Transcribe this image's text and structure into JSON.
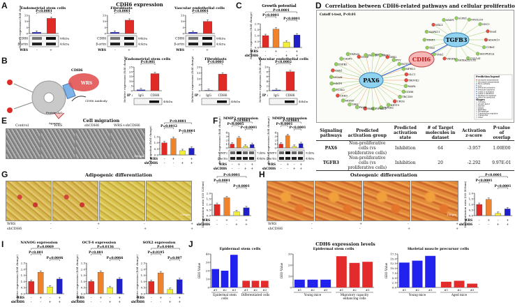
{
  "panels": {
    "A": "A",
    "B": "B",
    "C": "C",
    "D": "D",
    "E": "E",
    "F": "F",
    "G": "G",
    "H": "H",
    "I": "I",
    "J": "J"
  },
  "A": {
    "title": "CDH6 expression",
    "charts": [
      {
        "title": "Endometrial stem cells",
        "p": "P<0.0001",
        "values": [
          1,
          12.5
        ],
        "ymax": 15,
        "ticks": [
          "15",
          "10",
          "5",
          "0"
        ]
      },
      {
        "title": "Fibroblasts",
        "p": "P<0.0001",
        "values": [
          1,
          11
        ],
        "ymax": 15,
        "ticks": [
          "15",
          "10",
          "5",
          "0"
        ]
      },
      {
        "title": "Vascular endothelial cells",
        "p": "P<0.0001",
        "values": [
          1,
          10
        ],
        "ymax": 15,
        "ticks": [
          "15",
          "10",
          "5",
          "0"
        ]
      }
    ],
    "ylabel": "Relative expression (fold change)",
    "blot": {
      "cdh6": "CDH6",
      "actin": "β-actin",
      "kda1": "88kDa",
      "kda2": "43kDa"
    },
    "wrs": "WRS",
    "minus": "-",
    "plus": "+"
  },
  "B": {
    "diagram": {
      "cdh6": "CDH6",
      "wrs": "WRS",
      "antibody": "CDH6 Antibody",
      "beads": "Protein A/G",
      "agarose": "Agarose"
    },
    "charts": [
      {
        "title": "Endometrial stem cells",
        "p": "P<0.001",
        "values": [
          1,
          18
        ],
        "ymax": 25,
        "ticks": [
          "25",
          "20",
          "15",
          "10",
          "5",
          "0"
        ]
      },
      {
        "title": "Fibroblasts",
        "p": "P<0.0001",
        "values": [
          0.3,
          14
        ],
        "ymax": 20,
        "ticks": [
          "20",
          "15",
          "10",
          "5",
          "0"
        ]
      },
      {
        "title": "Vascular endothelial cells",
        "p": "P<0.0002",
        "values": [
          0.3,
          8
        ],
        "ymax": 10,
        "ticks": [
          "10",
          "8",
          "6",
          "4",
          "2",
          "0"
        ]
      }
    ],
    "ip": "IP :",
    "igg": "IgG",
    "cdh6": "CDH6",
    "kda": "40kDa",
    "ylabel": "Relative expression (fold change)"
  },
  "C": {
    "title": "Growth potential",
    "p": [
      "P<0.0001",
      "P<0.0001",
      "P<0.0001"
    ],
    "values": [
      1,
      1.55,
      0.45,
      1.05
    ],
    "ticks": [
      "2.0",
      "1.5",
      "1.0",
      "0.5",
      "0.0"
    ],
    "ylabel": "Relative expression (fold change)",
    "wrs": "WRS",
    "sh": "shCDH6",
    "wrs_row": [
      "-",
      "+",
      "-",
      "+"
    ],
    "sh_row": [
      "-",
      "-",
      "+",
      "+"
    ]
  },
  "D": {
    "title": "Correlation between CDH6-related pathways and cellular proliferation",
    "cutoff": "Cutoff t-test, P<0.01",
    "hubs": {
      "center": "CDH6",
      "left": "PAX6",
      "right": "TGFB3"
    },
    "pax6_genes": [
      "TROVE2",
      "MAFA",
      "CDH8",
      "TRC1D9",
      "UROS",
      "KRT19",
      "PAPAH2",
      "PIP5KL1",
      "PAX4",
      "PALM",
      "TPR1",
      "MGMT",
      "CDH3",
      "PCSK2",
      "MMP9",
      "LICAM",
      "TMX1",
      "TGFB2",
      "CASP9",
      "TRPM5",
      "SYNE",
      "FAAP20",
      "EPNB2",
      "DKK3",
      "DBX2",
      "PYY",
      "NOTCH1",
      "MPR13",
      "SLC1"
    ],
    "tgfb3_genes": [
      "ADAM19",
      "CYR61",
      "SH3PXD2A",
      "COL1A1",
      "HOXA2LTC85",
      "VEGFA",
      "TNS1",
      "TNC",
      "TIMP3",
      "MAPK11",
      "MXL1",
      "MMP1",
      "S1PR1",
      "MYOLO9",
      "SDC3",
      "Snail"
    ],
    "legend_title": "Prediction legend",
    "legend": [
      "Increased measurement",
      "Decreased measurement",
      "More extreme",
      "Less",
      "Predicted activation",
      "Predicted inhibition",
      "Leads to activation",
      "Leads to inhibition",
      "Findings inconsistent",
      "Effect not predicted"
    ],
    "legend_header2": "Shapes",
    "shapes": [
      "Cytokine",
      "Growth factor",
      "Enzyme",
      "Kinase",
      "Peptidase",
      "Phosphatase",
      "Transcription regulator",
      "Transporter",
      "Other"
    ],
    "table": {
      "headers": [
        "Signaling pathways",
        "Predicted activation group",
        "Predicted activation state",
        "# of Target molecules in dataset",
        "Activation z-score",
        "P-value of overlap"
      ],
      "rows": [
        [
          "PAX6",
          "Non-proliferative cells (vs proliferative cells)",
          "Inhibition",
          "64",
          "-3.957",
          "1.00E00"
        ],
        [
          "TGFB3",
          "Non-proliferative cells (vs proliferative cells)",
          "Inhibition",
          "20",
          "-2.292",
          "9.97E-01"
        ]
      ]
    }
  },
  "E": {
    "title": "Cell migration",
    "labels": [
      "Control",
      "WRS",
      "shCDH6",
      "WRS+shCDH6"
    ],
    "scale": "100μm",
    "p": [
      "P<0.0001",
      "P=0.0012",
      "P<0.0001"
    ],
    "values": [
      1,
      1.35,
      0.35,
      0.55
    ],
    "ticks": [
      "1.5",
      "1.0",
      "0.5",
      "0.0"
    ],
    "ylabel": "Cell migration (fold change)",
    "wrs": "WRS",
    "sh": "shCDH6",
    "wrs_row": [
      "-",
      "+",
      "-",
      "+"
    ],
    "sh_row": [
      "-",
      "-",
      "+",
      "+"
    ]
  },
  "F": {
    "charts": [
      {
        "title": "MMP2 expression",
        "p": [
          "P<0.0001",
          "P<0.0005",
          "P<0.0001"
        ],
        "values": [
          1,
          2.6,
          0.5,
          0.9
        ],
        "ticks": [
          "4",
          "3",
          "2",
          "1",
          "0"
        ],
        "ymax": 4
      },
      {
        "title": "MMP9 expression",
        "p": [
          "P<0.0001",
          "P<0.0001",
          "P<0.0001"
        ],
        "values": [
          1,
          3.2,
          0.4,
          1.1
        ],
        "ticks": [
          "4",
          "3",
          "2",
          "1",
          "0"
        ],
        "ymax": 4
      }
    ],
    "ylabel": "Relative expression (fold change)",
    "mmp2": "MMP2",
    "mmp9": "MMP9",
    "actin": "β-actin",
    "kda": [
      "72kDa",
      "43kDa",
      "92kDa",
      "43kDa"
    ],
    "wrs": "WRS",
    "sh": "shCDH6",
    "wrs_row": [
      "-",
      "+",
      "-",
      "+"
    ],
    "sh_row": [
      "-",
      "-",
      "+",
      "+"
    ]
  },
  "G": {
    "title": "Adipogenic differentiation",
    "scale": "100μm",
    "p": [
      "P<0.0001",
      "P=0.0001",
      "P<0.0001"
    ],
    "values": [
      1,
      1.6,
      0.35,
      0.7
    ],
    "ticks": [
      "2.0",
      "1.5",
      "1.0",
      "0.5",
      "0.0"
    ],
    "ylabel": "Differentiation ratio (OD 520nm)",
    "wrs": "WRS",
    "sh": "shCDH6",
    "wrs_row": [
      "-",
      "+",
      "-",
      "+"
    ],
    "sh_row": [
      "-",
      "-",
      "+",
      "+"
    ]
  },
  "H": {
    "title": "Osteogenic differentiation",
    "scale": "100μm",
    "p": [
      "P<0.0001",
      "P<0.0001",
      "P<0.0001"
    ],
    "values": [
      1,
      1.45,
      0.2,
      0.6
    ],
    "ticks": [
      "2.0",
      "1.5",
      "1.0",
      "0.5",
      "0.0"
    ],
    "ylabel": "Differentiation ratio (OD 405nm)",
    "wrs": "WRS",
    "sh": "shCDH6",
    "wrs_row": [
      "-",
      "+",
      "-",
      "+"
    ],
    "sh_row": [
      "-",
      "-",
      "+",
      "+"
    ]
  },
  "I": {
    "charts": [
      {
        "title": "NANOG expression",
        "p": [
          "P=0.0069",
          "P<0.001",
          "P=0.0046"
        ],
        "values": [
          1,
          1.75,
          0.55,
          1.2
        ],
        "ticks": [
          "2.5",
          "2.0",
          "1.5",
          "1.0",
          "0.5",
          "0.0"
        ],
        "ymax": 2.5
      },
      {
        "title": "OCT-4 expression",
        "p": [
          "P=0.0136",
          "P<0.001",
          "P=0.0066"
        ],
        "values": [
          1,
          1.75,
          0.5,
          1.2
        ],
        "ticks": [
          "2.5",
          "2.0",
          "1.5",
          "1.0",
          "0.5",
          "0.0"
        ],
        "ymax": 2.5
      },
      {
        "title": "SOX2 expression",
        "p": [
          "P=0.0404",
          "P=0.0195",
          "P=0.007"
        ],
        "values": [
          1,
          1.7,
          0.35,
          1.15
        ],
        "ticks": [
          "2.5",
          "2.0",
          "1.5",
          "1.0",
          "0.5",
          "0.0"
        ],
        "ymax": 2.5
      }
    ],
    "ylabel": "Relative expression (fold change)",
    "wrs": "WRS",
    "sh": "shCDH6",
    "wrs_row": [
      "-",
      "+",
      "-",
      "+"
    ],
    "sh_row": [
      "-",
      "-",
      "+",
      "+"
    ]
  },
  "J": {
    "title": "CDH6 expression levels",
    "ylabel": "GEO Value",
    "charts": [
      {
        "title": "Epidermal stem cells",
        "ymax": 40,
        "ticks": [
          "40",
          "30",
          "20",
          "10",
          "0"
        ],
        "groups": [
          {
            "label": "Epidermal stem cells",
            "values": [
              22,
              20,
              39
            ],
            "color": "#2222ee"
          },
          {
            "label": "Differentiated cells",
            "values": [
              8,
              8,
              8
            ],
            "color": "#e32b2b"
          }
        ]
      },
      {
        "title": "Epidermal stem cells",
        "ymax": 30,
        "ticks": [
          "30",
          "20",
          "10",
          "0"
        ],
        "groups": [
          {
            "label": "Young mice",
            "values": [
              7,
              7,
              7
            ],
            "color": "#2222ee"
          },
          {
            "label": "Migratory capacity enhancing cells",
            "values": [
              28,
              22,
              23
            ],
            "color": "#e32b2b"
          }
        ]
      },
      {
        "title": "Skeletal muscle precursor cells",
        "ymax": 17.5,
        "ticks": [
          "17.5",
          "15.0",
          "12.5",
          "10.0",
          "7.5",
          "5.0",
          "2.5",
          "0.0"
        ],
        "groups": [
          {
            "label": "Young mice",
            "values": [
              13,
              14,
              16.5
            ],
            "color": "#2222ee"
          },
          {
            "label": "Aged mice",
            "values": [
              3,
              3.5,
              2
            ],
            "color": "#e32b2b"
          }
        ]
      }
    ],
    "reps": [
      "#1",
      "#2",
      "#3"
    ]
  },
  "colors": {
    "blue": "#2b2bd8",
    "red": "#e02a25",
    "orange": "#f0832a",
    "yellow": "#f3ee3a",
    "navy": "#2020c8"
  }
}
